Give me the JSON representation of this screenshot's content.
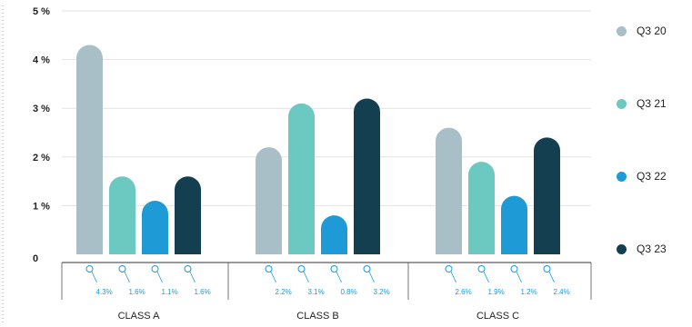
{
  "chart_data": {
    "type": "bar",
    "categories": [
      "CLASS A",
      "CLASS B",
      "CLASS C"
    ],
    "series": [
      {
        "name": "Q3 20",
        "color": "#a8bfc8",
        "values": [
          4.3,
          2.2,
          2.6
        ]
      },
      {
        "name": "Q3 21",
        "color": "#6cc9c2",
        "values": [
          1.6,
          3.1,
          1.9
        ]
      },
      {
        "name": "Q3 22",
        "color": "#1e9bd7",
        "values": [
          1.1,
          0.8,
          1.2
        ]
      },
      {
        "name": "Q3 23",
        "color": "#133f51",
        "values": [
          1.6,
          3.2,
          2.4
        ]
      }
    ],
    "data_labels": [
      [
        "4.3%",
        "1.6%",
        "1.1%",
        "1.6%"
      ],
      [
        "2.2%",
        "3.1%",
        "0.8%",
        "3.2%"
      ],
      [
        "2.6%",
        "1.9%",
        "1.2%",
        "2.4%"
      ]
    ],
    "ylim": [
      0,
      5
    ],
    "yticks": [
      "0",
      "1 %",
      "2 %",
      "3 %",
      "4 %",
      "5 %"
    ],
    "grid": true,
    "legend_position": "right"
  }
}
